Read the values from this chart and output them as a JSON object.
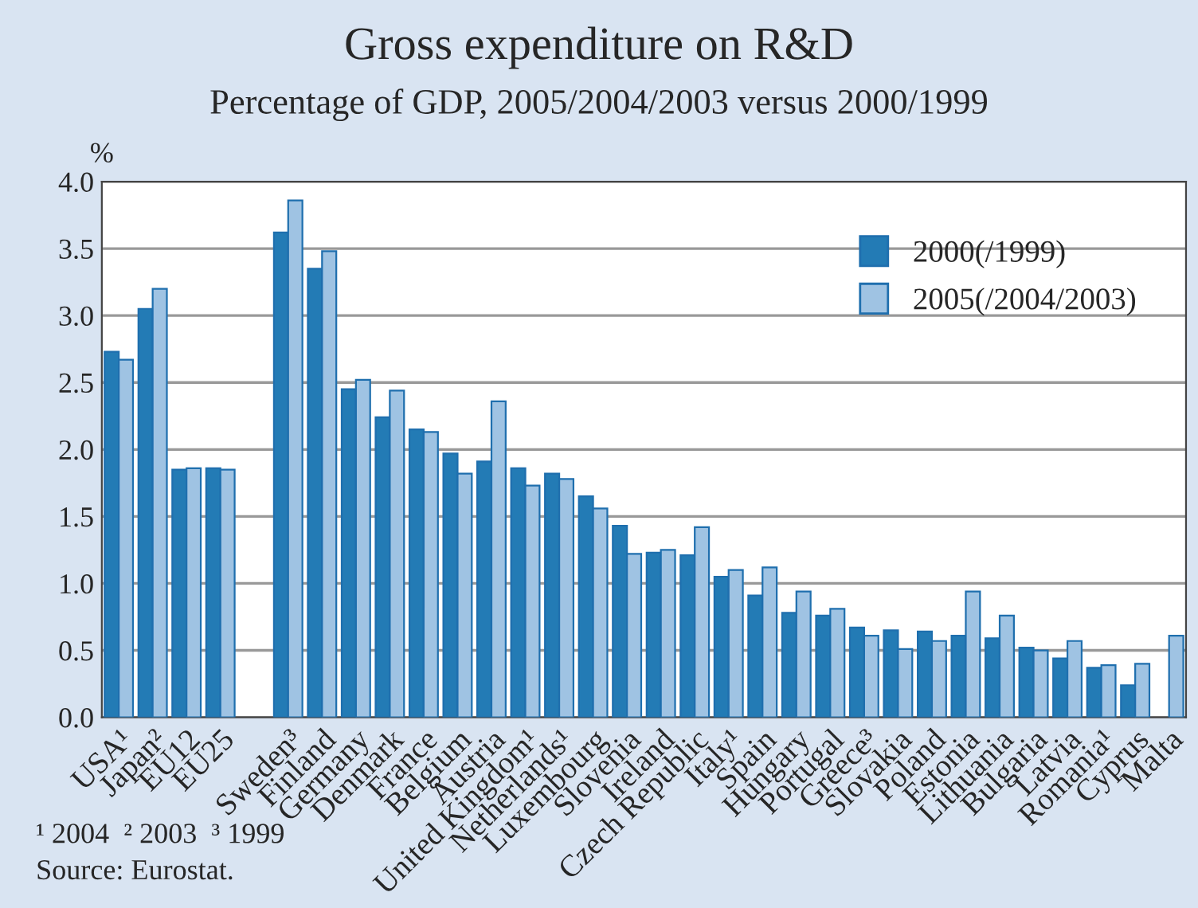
{
  "chart_data": {
    "type": "bar",
    "title": "Gross expenditure on R&D",
    "subtitle": "Percentage of GDP, 2005/2004/2003 versus 2000/1999",
    "ylabel": "%",
    "categories": [
      "USA¹",
      "Japan²",
      "EU12",
      "EU25",
      null,
      "Sweden³",
      "Finland",
      "Germany",
      "Denmark",
      "France",
      "Belgium",
      "Austria",
      "United Kingdom¹",
      "Netherlands¹",
      "Luxembourg",
      "Slovenia",
      "Ireland",
      "Czech Republic",
      "Italy¹",
      "Spain",
      "Hungary",
      "Portugal",
      "Greece³",
      "Slovakia",
      "Poland",
      "Estonia",
      "Lithuania",
      "Bulgaria",
      "Latvia",
      "Romania¹",
      "Cyprus",
      "Malta"
    ],
    "series": [
      {
        "name": "2000(/1999)",
        "color": "#237bb5",
        "values": [
          2.73,
          3.05,
          1.85,
          1.86,
          null,
          3.62,
          3.35,
          2.45,
          2.24,
          2.15,
          1.97,
          1.91,
          1.86,
          1.82,
          1.65,
          1.43,
          1.23,
          1.21,
          1.05,
          0.91,
          0.78,
          0.76,
          0.67,
          0.65,
          0.64,
          0.61,
          0.59,
          0.52,
          0.44,
          0.37,
          0.24,
          null
        ]
      },
      {
        "name": "2005(/2004/2003)",
        "color": "#9fc3e3",
        "values": [
          2.67,
          3.2,
          1.86,
          1.85,
          null,
          3.86,
          3.48,
          2.52,
          2.44,
          2.13,
          1.82,
          2.36,
          1.73,
          1.78,
          1.56,
          1.22,
          1.25,
          1.42,
          1.1,
          1.12,
          0.94,
          0.81,
          0.61,
          0.51,
          0.57,
          0.94,
          0.76,
          0.5,
          0.57,
          0.39,
          0.4,
          0.61
        ]
      }
    ],
    "ylim": [
      0,
      4.0
    ],
    "yticks": [
      {
        "value": 0,
        "label": "0.0"
      },
      {
        "value": 0.5,
        "label": "0.5"
      },
      {
        "value": 1,
        "label": "1.0"
      },
      {
        "value": 1.5,
        "label": "1.5"
      },
      {
        "value": 2,
        "label": "2.0"
      },
      {
        "value": 2.5,
        "label": "2.5"
      },
      {
        "value": 3,
        "label": "3.0"
      },
      {
        "value": 3.5,
        "label": "3.5"
      },
      {
        "value": 4,
        "label": "4.0"
      }
    ],
    "grid": "y",
    "legend": "top right",
    "annotations": [
      "¹ 2004  ² 2003  ³ 1999",
      "Source: Eurostat."
    ]
  }
}
